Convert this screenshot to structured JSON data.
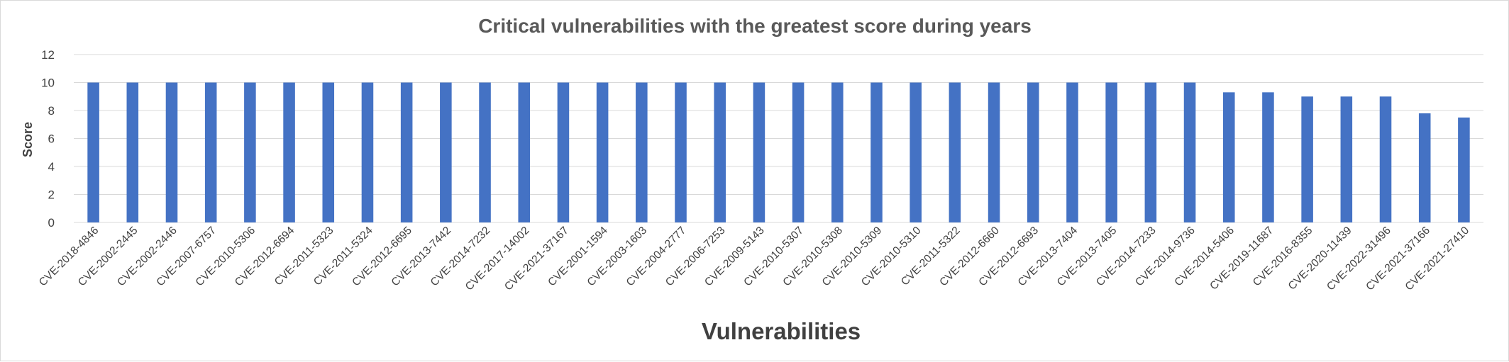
{
  "chart_data": {
    "type": "bar",
    "title": "Critical vulnerabilities with the greatest score during years",
    "xlabel": "Vulnerabilities",
    "ylabel": "Score",
    "ylim": [
      0,
      12
    ],
    "yticks": [
      0,
      2,
      4,
      6,
      8,
      10,
      12
    ],
    "grid": true,
    "bar_color": "#4472C4",
    "categories": [
      "CVE-2018-4846",
      "CVE-2002-2445",
      "CVE-2002-2446",
      "CVE-2007-6757",
      "CVE-2010-5306",
      "CVE-2012-6694",
      "CVE-2011-5323",
      "CVE-2011-5324",
      "CVE-2012-6695",
      "CVE-2013-7442",
      "CVE-2014-7232",
      "CVE-2017-14002",
      "CVE-2021-37167",
      "CVE-2001-1594",
      "CVE-2003-1603",
      "CVE-2004-2777",
      "CVE-2006-7253",
      "CVE-2009-5143",
      "CVE-2010-5307",
      "CVE-2010-5308",
      "CVE-2010-5309",
      "CVE-2010-5310",
      "CVE-2011-5322",
      "CVE-2012-6660",
      "CVE-2012-6693",
      "CVE-2013-7404",
      "CVE-2013-7405",
      "CVE-2014-7233",
      "CVE-2014-9736",
      "CVE-2014-5406",
      "CVE-2019-11687",
      "CVE-2016-8355",
      "CVE-2020-11439",
      "CVE-2022-31496",
      "CVE-2021-37166",
      "CVE-2021-27410"
    ],
    "values": [
      10,
      10,
      10,
      10,
      10,
      10,
      10,
      10,
      10,
      10,
      10,
      10,
      10,
      10,
      10,
      10,
      10,
      10,
      10,
      10,
      10,
      10,
      10,
      10,
      10,
      10,
      10,
      10,
      10,
      9.3,
      9.3,
      9,
      9,
      9,
      7.8,
      7.5
    ]
  }
}
